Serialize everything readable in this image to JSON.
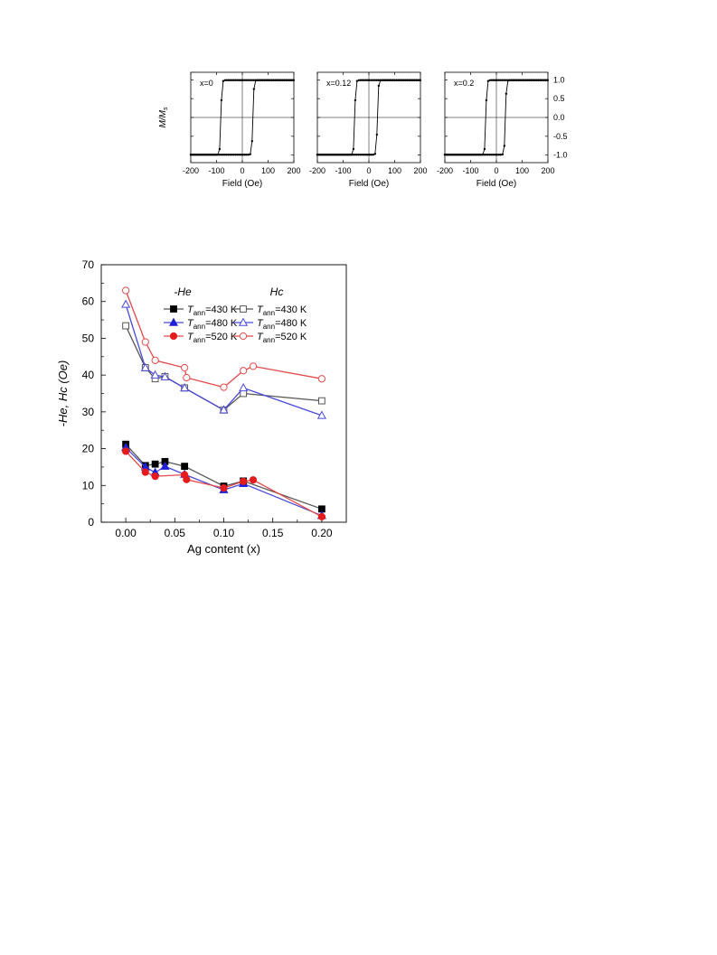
{
  "chart_data": [
    {
      "type": "line",
      "panel": "hysteresis-loop",
      "annotation": "x=0",
      "xlabel": "Field (Oe)",
      "ylabel": "M/M",
      "ylabel_sub": "s",
      "xlim": [
        -200,
        200
      ],
      "ylim": [
        -1.2,
        1.2
      ],
      "xticks": [
        -200,
        -100,
        0,
        100,
        200
      ],
      "yticks": [
        -1.0,
        -0.5,
        0.0,
        0.5,
        1.0
      ],
      "ytick_labels": [
        "-1.0",
        "-0.5",
        "0.0",
        "0.5",
        "1.0"
      ],
      "shift": -21,
      "coercivity": 62,
      "width": 4,
      "color": "#000000"
    },
    {
      "type": "line",
      "panel": "hysteresis-loop",
      "annotation": "x=0.12",
      "xlabel": "Field (Oe)",
      "xlim": [
        -200,
        200
      ],
      "ylim": [
        -1.2,
        1.2
      ],
      "xticks": [
        -200,
        -100,
        0,
        100,
        200
      ],
      "shift": -11,
      "coercivity": 44,
      "width": 4,
      "color": "#000000"
    },
    {
      "type": "line",
      "panel": "hysteresis-loop",
      "annotation": "x=0.2",
      "xlabel": "Field (Oe)",
      "xlim": [
        -200,
        200
      ],
      "ylim": [
        -1.2,
        1.2
      ],
      "xticks": [
        -200,
        -100,
        0,
        100,
        200
      ],
      "yticks": [
        -1.0,
        -0.5,
        0.0,
        0.5,
        1.0
      ],
      "ytick_labels": [
        "-1.0",
        "-0.5",
        "0.0",
        "0.5",
        "1.0"
      ],
      "shift": -3,
      "coercivity": 38,
      "width": 4,
      "color": "#000000"
    },
    {
      "type": "line",
      "panel": "main",
      "xlabel": "Ag content (x)",
      "ylabel": "-He, Hc (Oe)",
      "xlim": [
        -0.025,
        0.225
      ],
      "ylim": [
        0,
        70
      ],
      "xticks": [
        0.0,
        0.05,
        0.1,
        0.15,
        0.2
      ],
      "xtick_labels": [
        "0.00",
        "0.05",
        "0.10",
        "0.15",
        "0.20"
      ],
      "yticks": [
        0,
        10,
        20,
        30,
        40,
        50,
        60,
        70
      ],
      "ytick_labels": [
        "0",
        "10",
        "20",
        "30",
        "40",
        "50",
        "60",
        "70"
      ],
      "legend_group_labels": [
        "-He",
        "Hc"
      ],
      "legend_entry_labels": [
        "=430 K",
        "=480 K",
        "=520 K"
      ],
      "legend_entry_prefix": "T",
      "legend_entry_subscript": "ann",
      "series": [
        {
          "group": "-He",
          "temp": "430 K",
          "marker": "square",
          "filled": true,
          "color": "#000000",
          "line_color": "#555555",
          "x": [
            0.0,
            0.02,
            0.03,
            0.04,
            0.06,
            0.1,
            0.12,
            0.2
          ],
          "y": [
            21.2,
            15.4,
            15.8,
            16.5,
            15.2,
            9.8,
            11.2,
            3.6
          ]
        },
        {
          "group": "-He",
          "temp": "480 K",
          "marker": "triangle",
          "filled": true,
          "color": "#1f1fd6",
          "line_color": "#4a4ad8",
          "x": [
            0.0,
            0.02,
            0.03,
            0.04,
            0.06,
            0.1,
            0.12,
            0.2
          ],
          "y": [
            20.3,
            15.0,
            13.5,
            15.2,
            13.0,
            8.8,
            10.5,
            1.8
          ]
        },
        {
          "group": "-He",
          "temp": "520 K",
          "marker": "circle",
          "filled": true,
          "color": "#e41a1c",
          "line_color": "#e24a4a",
          "x": [
            0.0,
            0.02,
            0.03,
            0.06,
            0.062,
            0.1,
            0.12,
            0.13,
            0.2
          ],
          "y": [
            19.3,
            13.6,
            12.5,
            12.9,
            11.6,
            9.3,
            11.1,
            11.5,
            1.5
          ]
        },
        {
          "group": "Hc",
          "temp": "430 K",
          "marker": "square",
          "filled": false,
          "color": "#555555",
          "line_color": "#555555",
          "x": [
            0.0,
            0.02,
            0.03,
            0.04,
            0.06,
            0.1,
            0.12,
            0.2
          ],
          "y": [
            53.4,
            42.0,
            39.0,
            39.6,
            36.5,
            30.5,
            35.0,
            33.0
          ]
        },
        {
          "group": "Hc",
          "temp": "480 K",
          "marker": "triangle",
          "filled": false,
          "color": "#4a4ad8",
          "line_color": "#4a4ad8",
          "x": [
            0.0,
            0.02,
            0.03,
            0.04,
            0.06,
            0.1,
            0.12,
            0.2
          ],
          "y": [
            59.2,
            42.0,
            40.0,
            39.5,
            36.5,
            30.5,
            36.5,
            29.0
          ]
        },
        {
          "group": "Hc",
          "temp": "520 K",
          "marker": "circle",
          "filled": false,
          "color": "#e24a4a",
          "line_color": "#e24a4a",
          "x": [
            0.0,
            0.02,
            0.03,
            0.06,
            0.062,
            0.1,
            0.12,
            0.13,
            0.2
          ],
          "y": [
            63.0,
            49.0,
            44.0,
            42.0,
            39.3,
            36.7,
            41.2,
            42.4,
            39.0
          ]
        }
      ]
    }
  ]
}
